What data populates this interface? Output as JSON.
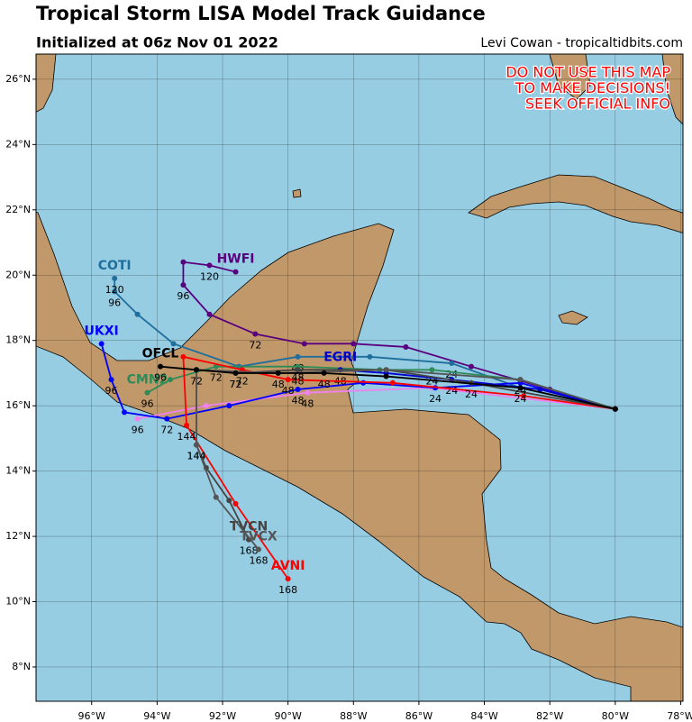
{
  "map": {
    "title": "Tropical Storm LISA Model Track Guidance",
    "subtitle": "Initialized at 06z Nov 01 2022",
    "credit": "Levi Cowan - tropicaltidbits.com",
    "warning": [
      "DO NOT USE THIS MAP",
      "TO MAKE DECISIONS!",
      "SEEK OFFICIAL INFO"
    ],
    "lonlim": [
      -97.7,
      -77.93
    ],
    "latlim": [
      6.95,
      26.77
    ],
    "lonticks": [
      {
        "value": -96,
        "label": "96°W"
      },
      {
        "value": -94,
        "label": "94°W"
      },
      {
        "value": -92,
        "label": "92°W"
      },
      {
        "value": -90,
        "label": "90°W"
      },
      {
        "value": -88,
        "label": "88°W"
      },
      {
        "value": -86,
        "label": "86°W"
      },
      {
        "value": -84,
        "label": "84°W"
      },
      {
        "value": -82,
        "label": "82°W"
      },
      {
        "value": -80,
        "label": "80°W"
      },
      {
        "value": -78,
        "label": "78°W"
      }
    ],
    "latticks": [
      {
        "value": 8,
        "label": "8°N"
      },
      {
        "value": 10,
        "label": "10°N"
      },
      {
        "value": 12,
        "label": "12°N"
      },
      {
        "value": 14,
        "label": "14°N"
      },
      {
        "value": 16,
        "label": "16°N"
      },
      {
        "value": 18,
        "label": "18°N"
      },
      {
        "value": 20,
        "label": "20°N"
      },
      {
        "value": 22,
        "label": "22°N"
      },
      {
        "value": 24,
        "label": "24°N"
      },
      {
        "value": 26,
        "label": "26°N"
      }
    ],
    "grid": true,
    "tracks": [
      {
        "name": "HWFI",
        "color": "#5a007f",
        "lon": [
          -80.0,
          -82.0,
          -84.4,
          -86.4,
          -88.0,
          -89.5,
          -91.0,
          -92.4,
          -93.2,
          -93.2,
          -92.4,
          -91.6
        ],
        "lat": [
          15.9,
          16.5,
          17.2,
          17.8,
          17.9,
          17.9,
          18.2,
          18.8,
          19.7,
          20.4,
          20.3,
          20.1
        ],
        "hours": [
          null,
          null,
          null,
          null,
          null,
          null,
          72,
          null,
          96,
          null,
          120,
          null
        ]
      },
      {
        "name": "COTI",
        "color": "#1f6e9c",
        "lon": [
          -80.0,
          -82.9,
          -85.0,
          -87.5,
          -89.7,
          -91.5,
          -93.5,
          -94.6,
          -95.3,
          -95.3
        ],
        "lat": [
          15.9,
          16.55,
          17.3,
          17.5,
          17.5,
          17.2,
          17.9,
          18.8,
          19.5,
          19.9
        ],
        "hours": [
          null,
          null,
          24,
          null,
          48,
          null,
          null,
          null,
          96,
          120
        ]
      },
      {
        "color": "#ee82ee",
        "lon": [
          -80.0,
          -85.6,
          -89.4,
          -92.5,
          -94.6
        ],
        "lat": [
          15.9,
          16.55,
          16.4,
          16.0,
          15.6
        ],
        "hours": [
          null,
          null,
          48,
          null,
          96
        ]
      },
      {
        "name": "CMN2",
        "color": "#2e8b57",
        "lon": [
          -80.0,
          -82.9,
          -85.6,
          -87.2,
          -89.7,
          -92.2,
          -93.6,
          -94.3
        ],
        "lat": [
          15.9,
          16.8,
          17.1,
          17.1,
          17.2,
          17.2,
          16.8,
          16.4
        ],
        "hours": [
          null,
          null,
          24,
          null,
          48,
          72,
          null,
          96
        ]
      },
      {
        "name": "UKXI",
        "color": "#0000ff",
        "lon": [
          -80.0,
          -82.9,
          -85.5,
          -87.7,
          -89.7,
          -91.8,
          -93.7,
          -95.0,
          -95.4,
          -95.7
        ],
        "lat": [
          15.9,
          16.7,
          16.55,
          16.7,
          16.5,
          16.0,
          15.6,
          15.8,
          16.8,
          17.9
        ],
        "hours": [
          null,
          null,
          24,
          null,
          48,
          null,
          72,
          null,
          96,
          null
        ]
      },
      {
        "name": "EGRI",
        "color": "#0000cd",
        "lon": [
          -80.0,
          -82.3,
          -85.0,
          -87.0,
          -88.4
        ],
        "lat": [
          15.9,
          16.5,
          16.8,
          17.0,
          17.1
        ],
        "hours": [
          null,
          null,
          24,
          null,
          48
        ]
      },
      {
        "name": "AVNI",
        "color": "#ff0000",
        "lon": [
          -80.0,
          -82.8,
          -86.8,
          -90.0,
          -91.4,
          -93.2,
          -93.1,
          -91.6,
          -90.0
        ],
        "lat": [
          15.9,
          16.3,
          16.7,
          16.8,
          17.1,
          17.5,
          15.4,
          13.0,
          10.7
        ],
        "hours": [
          null,
          null,
          null,
          48,
          72,
          null,
          144,
          null,
          168
        ]
      },
      {
        "name": "TVCN",
        "color": "#444444",
        "lon": [
          -80.0,
          -84.4,
          -87.0,
          -89.7,
          -91.6,
          -92.8,
          -92.8,
          -92.5,
          -91.8,
          -91.2
        ],
        "lat": [
          15.9,
          16.7,
          17.1,
          17.1,
          17.0,
          17.1,
          14.8,
          14.1,
          13.1,
          11.9
        ],
        "hours": [
          null,
          24,
          null,
          48,
          72,
          null,
          144,
          null,
          null,
          168
        ]
      },
      {
        "name": "TVCX",
        "color": "#555555",
        "lon": [
          -80.0,
          -82.9,
          -87.0,
          -90.3,
          -92.8,
          -92.8,
          -92.2,
          -90.9
        ],
        "lat": [
          15.9,
          16.8,
          17.1,
          17.0,
          17.1,
          14.8,
          13.2,
          11.6
        ],
        "hours": [
          null,
          24,
          null,
          48,
          72,
          144,
          null,
          168
        ]
      },
      {
        "name": "OFCL",
        "color": "#000000",
        "lon": [
          -80.0,
          -82.9,
          -87.0,
          -88.9,
          -90.3,
          -91.6,
          -92.8,
          -93.9
        ],
        "lat": [
          15.9,
          16.55,
          16.9,
          17.0,
          17.0,
          17.0,
          17.1,
          17.2
        ],
        "hours": [
          null,
          24,
          null,
          48,
          null,
          72,
          null,
          96
        ]
      }
    ]
  }
}
